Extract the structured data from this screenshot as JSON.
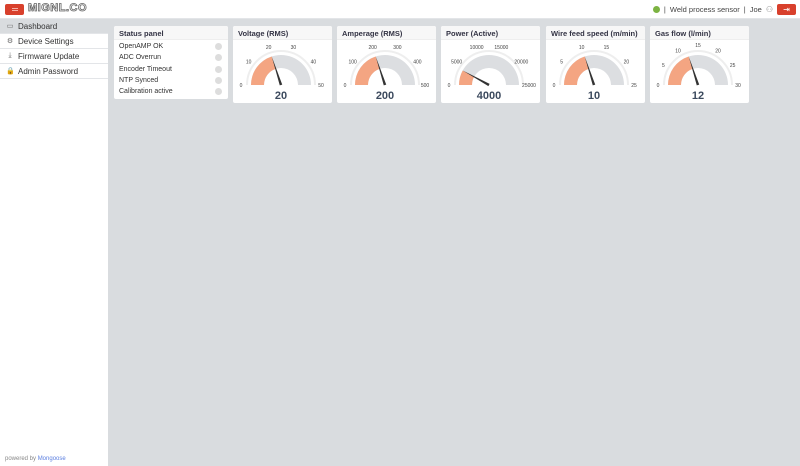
{
  "header": {
    "logo": "MIGNL.CO",
    "device": "Weld process sensor",
    "separator": "|",
    "user": "Joe",
    "menu_icon": "hamburger-icon",
    "logout_icon": "logout-icon",
    "user_icon": "user-icon",
    "status_color": "#7cb342",
    "accent": "#d8402c"
  },
  "sidebar": {
    "items": [
      {
        "label": "Dashboard",
        "icon": "monitor-icon",
        "glyph": "▭"
      },
      {
        "label": "Device Settings",
        "icon": "gear-icon",
        "glyph": "⚙"
      },
      {
        "label": "Firmware Update",
        "icon": "download-icon",
        "glyph": "⤓"
      },
      {
        "label": "Admin Password",
        "icon": "lock-icon",
        "glyph": "🔒"
      }
    ],
    "powered_prefix": "powered by ",
    "powered_link": "Mongoose"
  },
  "status_panel": {
    "title": "Status panel",
    "items": [
      {
        "label": "OpenAMP OK",
        "on": false
      },
      {
        "label": "ADC Overrun",
        "on": false
      },
      {
        "label": "Encoder Timeout",
        "on": false
      },
      {
        "label": "NTP Synced",
        "on": false
      },
      {
        "label": "Calibration active",
        "on": false
      }
    ]
  },
  "gauges": [
    {
      "title": "Voltage (RMS)",
      "value": 20,
      "max": 50,
      "ticks": [
        "0",
        "10",
        "20",
        "30",
        "40",
        "50"
      ]
    },
    {
      "title": "Amperage (RMS)",
      "value": 200,
      "max": 500,
      "ticks": [
        "0",
        "100",
        "200",
        "300",
        "400",
        "500"
      ]
    },
    {
      "title": "Power (Active)",
      "value": 4000,
      "max": 25000,
      "ticks": [
        "0",
        "5000",
        "10000",
        "15000",
        "20000",
        "25000"
      ]
    },
    {
      "title": "Wire feed speed (m/min)",
      "value": 10,
      "max": 25,
      "ticks": [
        "0",
        "5",
        "10",
        "15",
        "20",
        "25"
      ]
    },
    {
      "title": "Gas flow (l/min)",
      "value": 12,
      "max": 30,
      "ticks": [
        "0",
        "5",
        "10",
        "15",
        "20",
        "25",
        "30"
      ]
    }
  ],
  "colors": {
    "gauge_fill": "#f4a582",
    "gauge_track": "#dcdee1",
    "needle": "#333333",
    "value_text": "#3c4a5e"
  }
}
